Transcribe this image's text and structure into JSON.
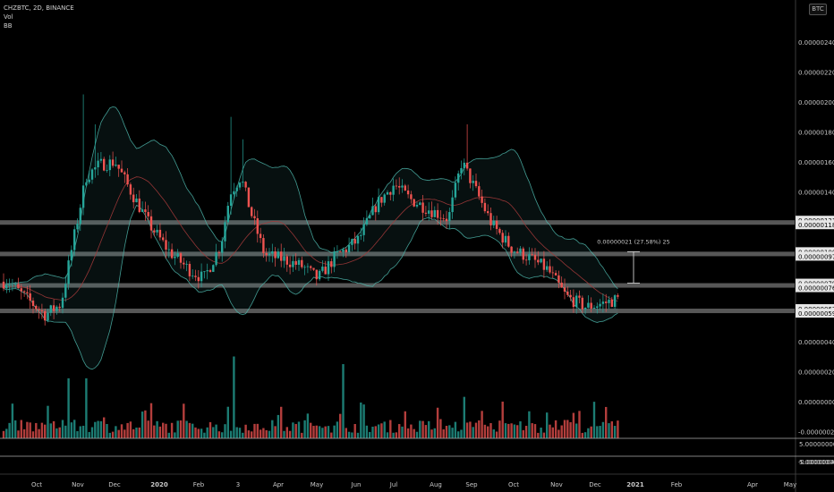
{
  "header": {
    "symbol_line": "CHZBTC, 2D, BINANCE",
    "indicator_vol": "Vol",
    "indicator_bb": "BB",
    "currency_badge": "BTC"
  },
  "price_scale": {
    "labels": [
      "0.00000240",
      "0.00000220",
      "0.00000200",
      "0.00000180",
      "0.00000160",
      "0.00000140",
      "0.00000040",
      "0.00000020",
      "0.00000000",
      "-0.00000020",
      "-0.00000040"
    ],
    "volume_labels": [
      "5.00000000",
      "5.00000000"
    ]
  },
  "levels": [
    {
      "label": "0.00000121",
      "value": 121
    },
    {
      "label": "0.00000118",
      "value": 118
    },
    {
      "label": "0.00000100",
      "value": 100
    },
    {
      "label": "0.00000097",
      "value": 97
    },
    {
      "label": "0.00000079",
      "value": 79
    },
    {
      "label": "0.00000076",
      "value": 76
    },
    {
      "label": "0.00000062",
      "value": 62
    },
    {
      "label": "0.00000059",
      "value": 59
    }
  ],
  "measure": {
    "text": "0.00000021 (27.58%) 25",
    "from_value": 79,
    "to_value": 100
  },
  "time_axis": [
    "Oct",
    "Nov",
    "Dec",
    "2020",
    "Feb",
    "3",
    "Apr",
    "May",
    "Jun",
    "Jul",
    "Aug",
    "Sep",
    "Oct",
    "Nov",
    "Dec",
    "2021",
    "Feb",
    "Apr",
    "May"
  ],
  "colors": {
    "up": "#26a69a",
    "down": "#ef5350",
    "bb_band": "#4db6ac",
    "bb_basis": "#a33a3a",
    "zone": "#9e9e9e",
    "background": "#000000"
  },
  "chart_data": {
    "type": "candlestick",
    "title": "CHZBTC, 2D, BINANCE",
    "unit_note": "",
    "ylim": [
      -50,
      255
    ],
    "close_path": [
      {
        "date": "2019-09-10",
        "close": 80
      },
      {
        "date": "2019-09-25",
        "close": 68
      },
      {
        "date": "2019-10-08",
        "close": 58
      },
      {
        "date": "2019-10-20",
        "close": 65
      },
      {
        "date": "2019-10-30",
        "close": 110
      },
      {
        "date": "2019-11-08",
        "close": 150
      },
      {
        "date": "2019-11-18",
        "close": 158
      },
      {
        "date": "2019-11-30",
        "close": 160
      },
      {
        "date": "2019-12-12",
        "close": 140
      },
      {
        "date": "2019-12-26",
        "close": 118
      },
      {
        "date": "2020-01-10",
        "close": 100
      },
      {
        "date": "2020-01-25",
        "close": 88
      },
      {
        "date": "2020-02-05",
        "close": 82
      },
      {
        "date": "2020-02-18",
        "close": 105
      },
      {
        "date": "2020-02-25",
        "close": 140
      },
      {
        "date": "2020-03-04",
        "close": 150
      },
      {
        "date": "2020-03-12",
        "close": 125
      },
      {
        "date": "2020-03-22",
        "close": 98
      },
      {
        "date": "2020-04-05",
        "close": 95
      },
      {
        "date": "2020-04-20",
        "close": 90
      },
      {
        "date": "2020-05-01",
        "close": 82
      },
      {
        "date": "2020-05-15",
        "close": 97
      },
      {
        "date": "2020-06-01",
        "close": 108
      },
      {
        "date": "2020-06-15",
        "close": 132
      },
      {
        "date": "2020-06-28",
        "close": 145
      },
      {
        "date": "2020-07-10",
        "close": 135
      },
      {
        "date": "2020-07-25",
        "close": 128
      },
      {
        "date": "2020-08-08",
        "close": 122
      },
      {
        "date": "2020-08-18",
        "close": 160
      },
      {
        "date": "2020-08-28",
        "close": 142
      },
      {
        "date": "2020-09-10",
        "close": 118
      },
      {
        "date": "2020-09-25",
        "close": 102
      },
      {
        "date": "2020-10-08",
        "close": 96
      },
      {
        "date": "2020-10-22",
        "close": 88
      },
      {
        "date": "2020-11-05",
        "close": 70
      },
      {
        "date": "2020-11-20",
        "close": 63
      },
      {
        "date": "2020-12-05",
        "close": 66
      },
      {
        "date": "2020-12-16",
        "close": 69
      }
    ],
    "volume_relative": [
      {
        "date": "2019-09-05",
        "value": 0.95
      },
      {
        "date": "2019-10-25",
        "value": 0.55
      },
      {
        "date": "2019-11-08",
        "value": 0.55
      },
      {
        "date": "2020-02-28",
        "value": 0.75
      },
      {
        "date": "2020-05-20",
        "value": 0.68
      },
      {
        "date": "2020-08-20",
        "value": 0.38
      }
    ]
  }
}
